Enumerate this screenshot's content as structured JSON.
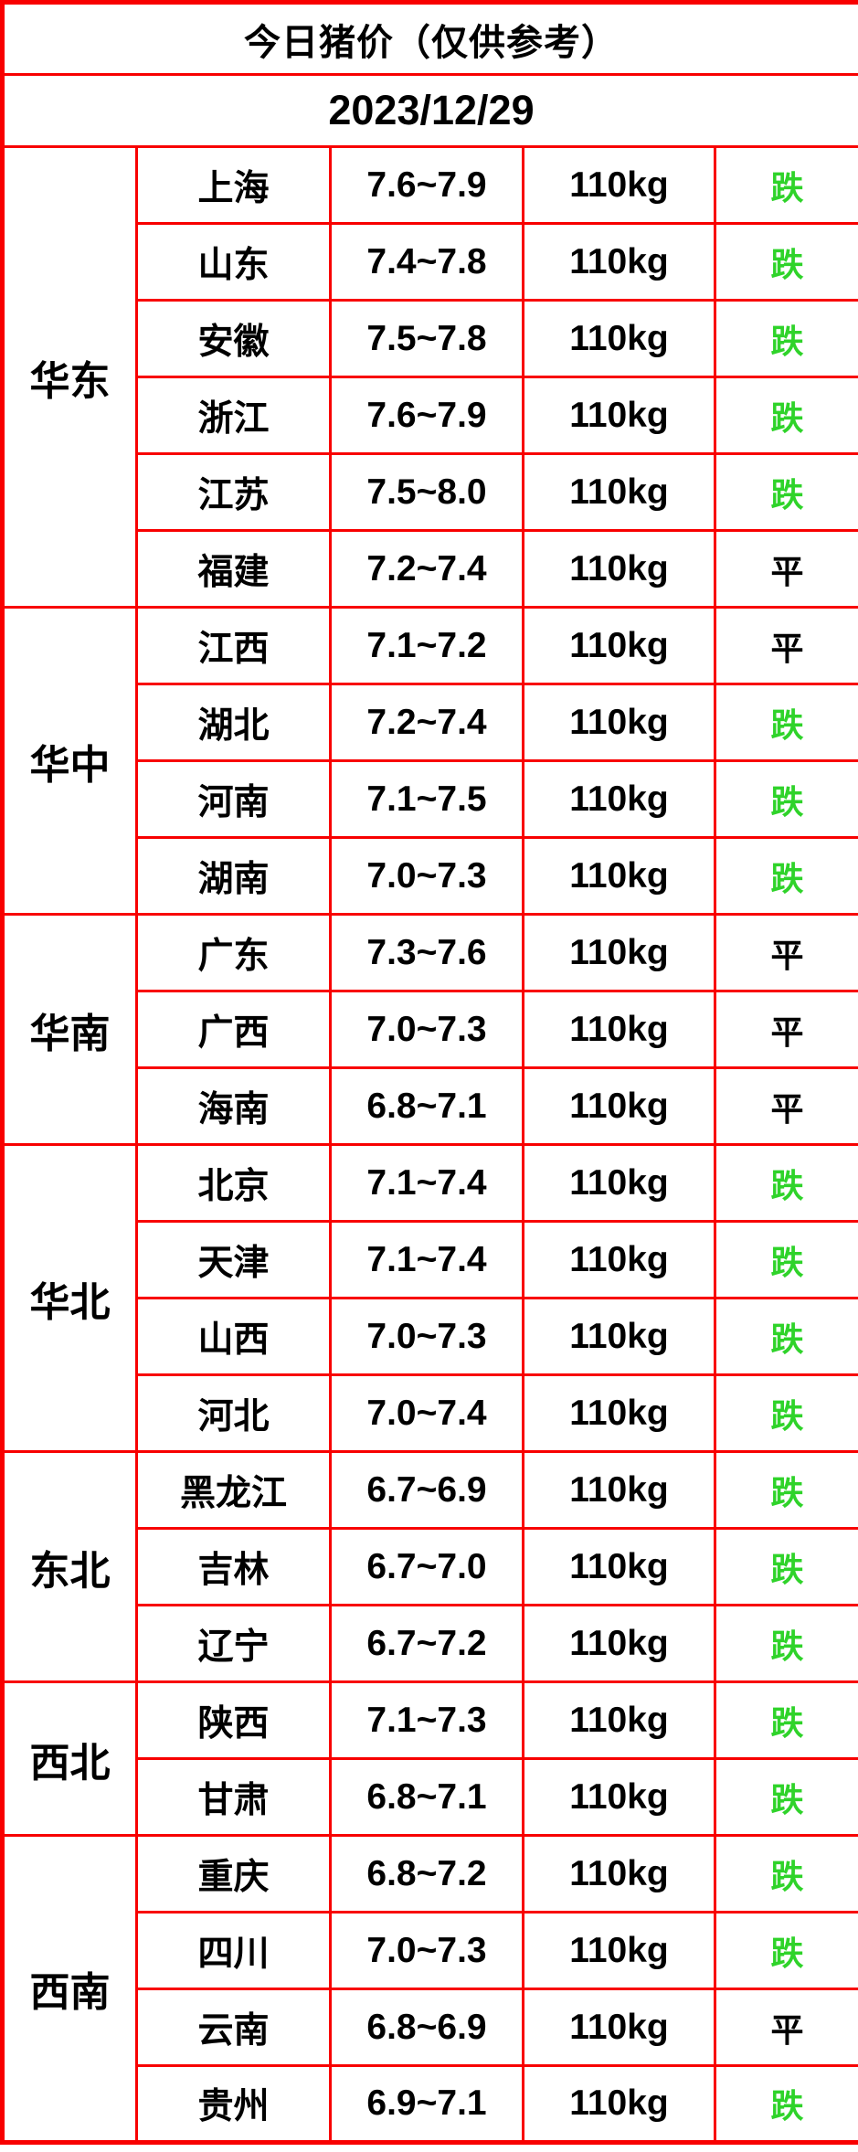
{
  "title": "今日猪价（仅供参考）",
  "date": "2023/12/29",
  "colors": {
    "header_bg": "#ec5c0f",
    "border": "#f80000",
    "fall_text": "#2fd32a",
    "flat_text": "#000000"
  },
  "status_legend": {
    "fall": "跌",
    "flat": "平"
  },
  "table": {
    "regions": [
      {
        "name": "华东",
        "rows": [
          {
            "province": "上海",
            "price": "7.6~7.9",
            "weight": "110kg",
            "status": "跌"
          },
          {
            "province": "山东",
            "price": "7.4~7.8",
            "weight": "110kg",
            "status": "跌"
          },
          {
            "province": "安徽",
            "price": "7.5~7.8",
            "weight": "110kg",
            "status": "跌"
          },
          {
            "province": "浙江",
            "price": "7.6~7.9",
            "weight": "110kg",
            "status": "跌"
          },
          {
            "province": "江苏",
            "price": "7.5~8.0",
            "weight": "110kg",
            "status": "跌"
          },
          {
            "province": "福建",
            "price": "7.2~7.4",
            "weight": "110kg",
            "status": "平"
          }
        ]
      },
      {
        "name": "华中",
        "rows": [
          {
            "province": "江西",
            "price": "7.1~7.2",
            "weight": "110kg",
            "status": "平"
          },
          {
            "province": "湖北",
            "price": "7.2~7.4",
            "weight": "110kg",
            "status": "跌"
          },
          {
            "province": "河南",
            "price": "7.1~7.5",
            "weight": "110kg",
            "status": "跌"
          },
          {
            "province": "湖南",
            "price": "7.0~7.3",
            "weight": "110kg",
            "status": "跌"
          }
        ]
      },
      {
        "name": "华南",
        "rows": [
          {
            "province": "广东",
            "price": "7.3~7.6",
            "weight": "110kg",
            "status": "平"
          },
          {
            "province": "广西",
            "price": "7.0~7.3",
            "weight": "110kg",
            "status": "平"
          },
          {
            "province": "海南",
            "price": "6.8~7.1",
            "weight": "110kg",
            "status": "平"
          }
        ]
      },
      {
        "name": "华北",
        "rows": [
          {
            "province": "北京",
            "price": "7.1~7.4",
            "weight": "110kg",
            "status": "跌"
          },
          {
            "province": "天津",
            "price": "7.1~7.4",
            "weight": "110kg",
            "status": "跌"
          },
          {
            "province": "山西",
            "price": "7.0~7.3",
            "weight": "110kg",
            "status": "跌"
          },
          {
            "province": "河北",
            "price": "7.0~7.4",
            "weight": "110kg",
            "status": "跌"
          }
        ]
      },
      {
        "name": "东北",
        "rows": [
          {
            "province": "黑龙江",
            "price": "6.7~6.9",
            "weight": "110kg",
            "status": "跌"
          },
          {
            "province": "吉林",
            "price": "6.7~7.0",
            "weight": "110kg",
            "status": "跌"
          },
          {
            "province": "辽宁",
            "price": "6.7~7.2",
            "weight": "110kg",
            "status": "跌"
          }
        ]
      },
      {
        "name": "西北",
        "rows": [
          {
            "province": "陕西",
            "price": "7.1~7.3",
            "weight": "110kg",
            "status": "跌"
          },
          {
            "province": "甘肃",
            "price": "6.8~7.1",
            "weight": "110kg",
            "status": "跌"
          }
        ]
      },
      {
        "name": "西南",
        "rows": [
          {
            "province": "重庆",
            "price": "6.8~7.2",
            "weight": "110kg",
            "status": "跌"
          },
          {
            "province": "四川",
            "price": "7.0~7.3",
            "weight": "110kg",
            "status": "跌"
          },
          {
            "province": "云南",
            "price": "6.8~6.9",
            "weight": "110kg",
            "status": "平"
          },
          {
            "province": "贵州",
            "price": "6.9~7.1",
            "weight": "110kg",
            "status": "跌"
          }
        ]
      }
    ]
  }
}
